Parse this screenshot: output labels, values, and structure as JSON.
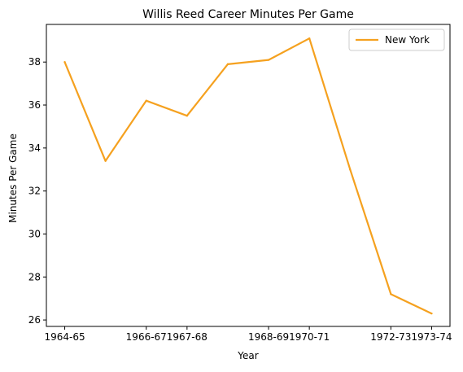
{
  "chart_data": {
    "type": "line",
    "title": "Willis Reed Career Minutes Per Game",
    "xlabel": "Year",
    "ylabel": "Minutes Per Game",
    "x_tick_labels": [
      "1964-65",
      "1966-67",
      "1967-68",
      "1968-69",
      "1970-71",
      "1972-73",
      "1973-74"
    ],
    "x_tick_positions": [
      0,
      2,
      3,
      5,
      6,
      8,
      9
    ],
    "x": [
      0,
      1,
      2,
      3,
      4,
      5,
      6,
      7,
      8,
      9
    ],
    "series": [
      {
        "name": "New York",
        "color": "#f5a11f",
        "values": [
          38.0,
          33.4,
          36.2,
          35.5,
          37.9,
          38.1,
          39.1,
          33.0,
          27.2,
          26.3
        ]
      }
    ],
    "xlim": [
      -0.45,
      9.45
    ],
    "ylim": [
      25.7,
      39.75
    ],
    "y_ticks": [
      26,
      28,
      30,
      32,
      34,
      36,
      38
    ],
    "grid": false,
    "legend_position": "upper right"
  }
}
